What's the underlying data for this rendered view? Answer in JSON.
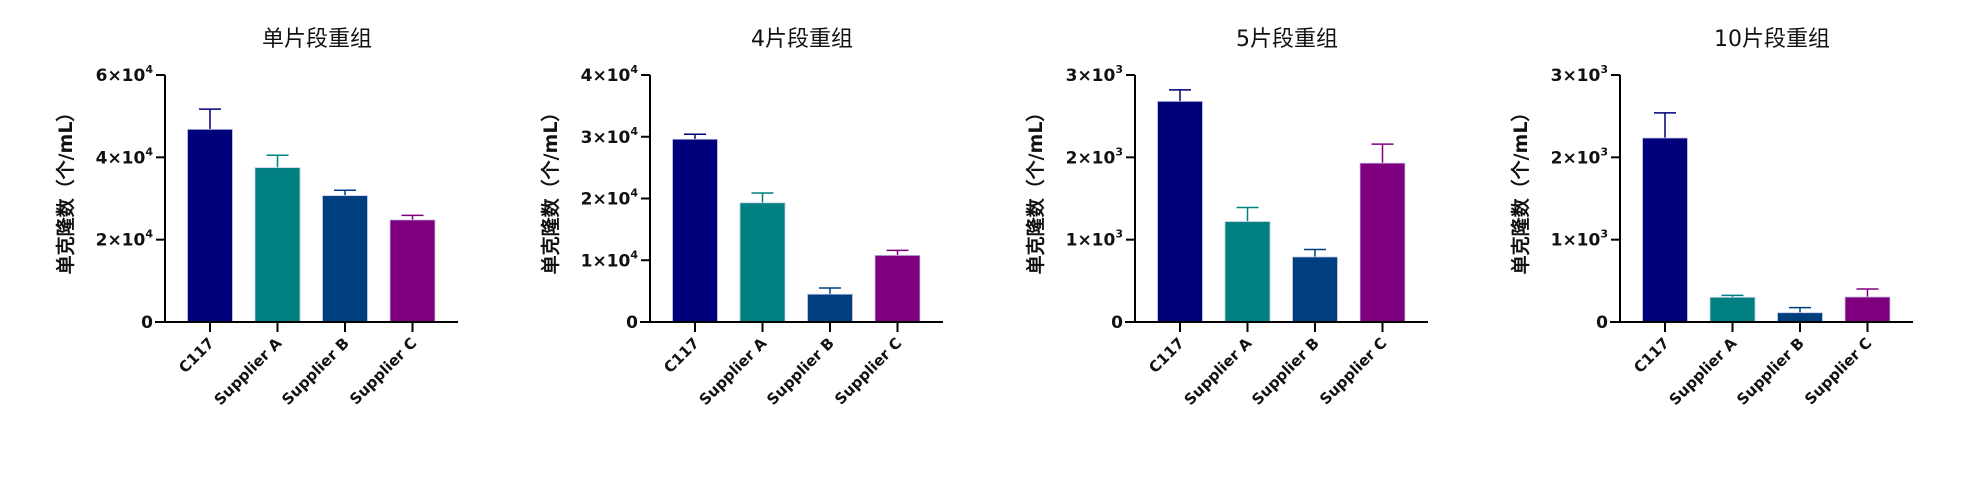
{
  "chart_data": [
    {
      "type": "bar",
      "title": "单片段重组",
      "ylabel": "单克隆数（个/mL）",
      "xlabel": "",
      "categories": [
        "C117",
        "Supplier A",
        "Supplier B",
        "Supplier C"
      ],
      "values": [
        46800,
        37500,
        30700,
        24800
      ],
      "error_upper": [
        51700,
        40500,
        32000,
        25900
      ],
      "ylim": [
        0,
        60000
      ],
      "ticks": [
        {
          "v": 0,
          "m": "0",
          "e": ""
        },
        {
          "v": 20000,
          "m": "2",
          "e": "4"
        },
        {
          "v": 40000,
          "m": "4",
          "e": "4"
        },
        {
          "v": 60000,
          "m": "6",
          "e": "4"
        }
      ]
    },
    {
      "type": "bar",
      "title": "4片段重组",
      "ylabel": "单克隆数（个/mL）",
      "xlabel": "",
      "categories": [
        "C117",
        "Supplier A",
        "Supplier B",
        "Supplier C"
      ],
      "values": [
        29600,
        19300,
        4500,
        10800
      ],
      "error_upper": [
        30400,
        20900,
        5500,
        11600
      ],
      "ylim": [
        0,
        40000
      ],
      "ticks": [
        {
          "v": 0,
          "m": "0",
          "e": ""
        },
        {
          "v": 10000,
          "m": "1",
          "e": "4"
        },
        {
          "v": 20000,
          "m": "2",
          "e": "4"
        },
        {
          "v": 30000,
          "m": "3",
          "e": "4"
        },
        {
          "v": 40000,
          "m": "4",
          "e": "4"
        }
      ]
    },
    {
      "type": "bar",
      "title": "5片段重组",
      "ylabel": "单克隆数（个/mL）",
      "xlabel": "",
      "categories": [
        "C117",
        "Supplier A",
        "Supplier B",
        "Supplier C"
      ],
      "values": [
        2680,
        1220,
        790,
        1930
      ],
      "error_upper": [
        2820,
        1390,
        880,
        2160
      ],
      "ylim": [
        0,
        3000
      ],
      "ticks": [
        {
          "v": 0,
          "m": "0",
          "e": ""
        },
        {
          "v": 1000,
          "m": "1",
          "e": "3"
        },
        {
          "v": 2000,
          "m": "2",
          "e": "3"
        },
        {
          "v": 3000,
          "m": "3",
          "e": "3"
        }
      ]
    },
    {
      "type": "bar",
      "title": "10片段重组",
      "ylabel": "单克隆数（个/mL）",
      "xlabel": "",
      "categories": [
        "C117",
        "Supplier A",
        "Supplier B",
        "Supplier C"
      ],
      "values": [
        2235,
        300,
        113,
        304
      ],
      "error_upper": [
        2540,
        324,
        174,
        401
      ],
      "ylim": [
        0,
        3000
      ],
      "ticks": [
        {
          "v": 0,
          "m": "0",
          "e": ""
        },
        {
          "v": 1000,
          "m": "1",
          "e": "3"
        },
        {
          "v": 2000,
          "m": "2",
          "e": "3"
        },
        {
          "v": 3000,
          "m": "3",
          "e": "3"
        }
      ]
    }
  ],
  "colors": [
    "#00007a",
    "#008080",
    "#003f7f",
    "#7f007f"
  ],
  "times_ten": "×10"
}
